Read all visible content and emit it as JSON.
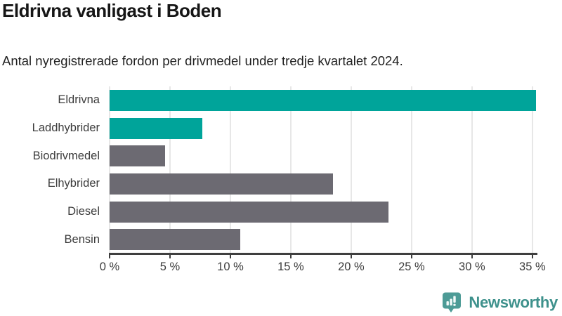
{
  "title": "Eldrivna vanligast i Boden",
  "subtitle": "Antal nyregistrerade fordon per drivmedel under tredje kvartalet 2024.",
  "branding": {
    "name": "Newsworthy",
    "logo_icon": "bar-chart-speech-bubble",
    "text_color": "#3e918c",
    "icon_color": "#4d9b96"
  },
  "colors": {
    "highlight_bar": "#00a49a",
    "default_bar": "#6c6a72",
    "gridline": "#e7e7e7",
    "axis": "#3f3f3f",
    "label_text": "#3c3c3c",
    "title_text": "#161616"
  },
  "chart_data": {
    "type": "bar",
    "orientation": "horizontal",
    "title": "Eldrivna vanligast i Boden",
    "subtitle": "Antal nyregistrerade fordon per drivmedel under tredje kvartalet 2024.",
    "categories": [
      "Eldrivna",
      "Laddhybrider",
      "Biodrivmedel",
      "Elhybrider",
      "Diesel",
      "Bensin"
    ],
    "values": [
      35.3,
      7.7,
      4.6,
      18.5,
      23.1,
      10.8
    ],
    "unit": "%",
    "bar_colors": [
      "#00a49a",
      "#00a49a",
      "#6c6a72",
      "#6c6a72",
      "#6c6a72",
      "#6c6a72"
    ],
    "highlighted_categories": [
      "Eldrivna",
      "Laddhybrider"
    ],
    "x_tick_labels": [
      "0 %",
      "5 %",
      "10 %",
      "15 %",
      "20 %",
      "25 %",
      "30 %",
      "35 %"
    ],
    "x_tick_values": [
      0,
      5,
      10,
      15,
      20,
      25,
      30,
      35
    ],
    "xlim": [
      0,
      35.3
    ],
    "grid": "vertical",
    "legend": "none"
  }
}
